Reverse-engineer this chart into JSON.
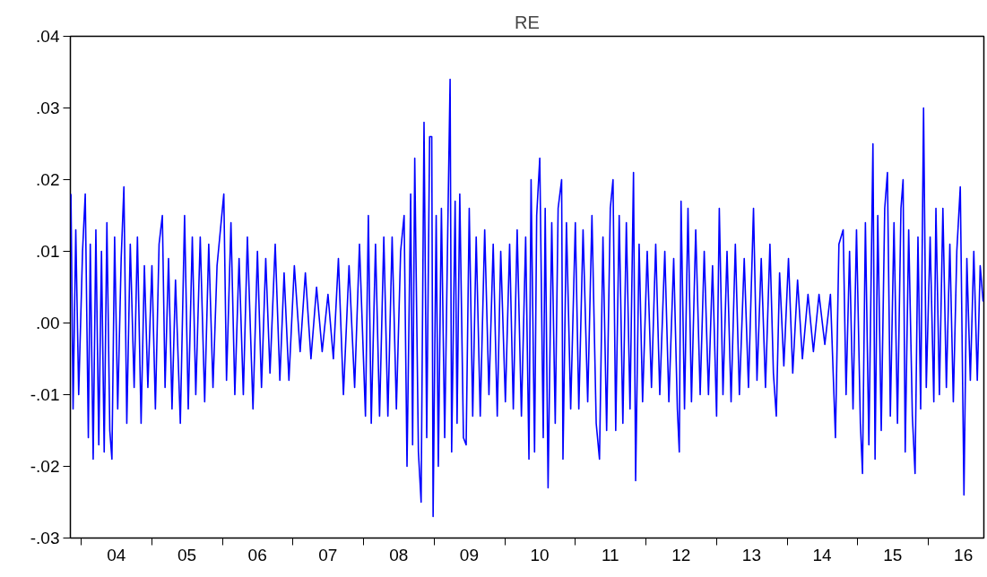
{
  "chart_data": {
    "type": "line",
    "title": "RE",
    "xlim": [
      "2003-11-06",
      "2016-10-15"
    ],
    "ylim": [
      -0.03,
      0.04
    ],
    "xticks": [
      {
        "value": "2004-01-01",
        "label": null
      },
      {
        "value": "2004-07-01",
        "label": "04"
      },
      {
        "value": "2005-01-01",
        "label": null
      },
      {
        "value": "2005-07-01",
        "label": "05"
      },
      {
        "value": "2006-01-01",
        "label": null
      },
      {
        "value": "2006-07-01",
        "label": "06"
      },
      {
        "value": "2007-01-01",
        "label": null
      },
      {
        "value": "2007-07-01",
        "label": "07"
      },
      {
        "value": "2008-01-01",
        "label": null
      },
      {
        "value": "2008-07-01",
        "label": "08"
      },
      {
        "value": "2009-01-01",
        "label": null
      },
      {
        "value": "2009-07-01",
        "label": "09"
      },
      {
        "value": "2010-01-01",
        "label": null
      },
      {
        "value": "2010-07-01",
        "label": "10"
      },
      {
        "value": "2011-01-01",
        "label": null
      },
      {
        "value": "2011-07-01",
        "label": "11"
      },
      {
        "value": "2012-01-01",
        "label": null
      },
      {
        "value": "2012-07-01",
        "label": "12"
      },
      {
        "value": "2013-01-01",
        "label": null
      },
      {
        "value": "2013-07-01",
        "label": "13"
      },
      {
        "value": "2014-01-01",
        "label": null
      },
      {
        "value": "2014-07-01",
        "label": "14"
      },
      {
        "value": "2015-01-01",
        "label": null
      },
      {
        "value": "2015-07-01",
        "label": "15"
      },
      {
        "value": "2016-01-01",
        "label": null
      },
      {
        "value": "2016-07-01",
        "label": "16"
      }
    ],
    "yticks": [
      {
        "value": -0.03,
        "label": "-.03"
      },
      {
        "value": -0.02,
        "label": "-.02"
      },
      {
        "value": -0.01,
        "label": "-.01"
      },
      {
        "value": 0,
        "label": ".00"
      },
      {
        "value": 0.01,
        "label": ".01"
      },
      {
        "value": 0.02,
        "label": ".02"
      },
      {
        "value": 0.03,
        "label": ".03"
      },
      {
        "value": 0.04,
        "label": ".04"
      }
    ],
    "line_style": "solid",
    "series": [
      {
        "color": "#0000ff",
        "x": [
          "2003-11-09",
          "2003-11-20",
          "2003-12-04",
          "2003-12-19",
          "2004-01-08",
          "2004-01-22",
          "2004-02-07",
          "2004-02-17",
          "2004-03-03",
          "2004-03-17",
          "2004-04-01",
          "2004-04-15",
          "2004-04-29",
          "2004-05-13",
          "2004-05-28",
          "2004-06-08",
          "2004-06-22",
          "2004-07-08",
          "2004-07-26",
          "2004-08-09",
          "2004-08-24",
          "2004-09-11",
          "2004-10-01",
          "2004-10-18",
          "2004-11-06",
          "2004-11-23",
          "2004-12-11",
          "2005-01-01",
          "2005-01-19",
          "2005-02-07",
          "2005-02-24",
          "2005-03-10",
          "2005-03-28",
          "2005-04-15",
          "2005-05-03",
          "2005-05-28",
          "2005-06-19",
          "2005-07-08",
          "2005-07-29",
          "2005-08-16",
          "2005-09-08",
          "2005-10-01",
          "2005-10-22",
          "2005-11-13",
          "2005-12-04",
          "2006-01-08",
          "2006-01-22",
          "2006-02-14",
          "2006-03-06",
          "2006-03-28",
          "2006-04-19",
          "2006-05-10",
          "2006-06-08",
          "2006-07-01",
          "2006-07-22",
          "2006-08-13",
          "2006-09-04",
          "2006-10-01",
          "2006-10-25",
          "2006-11-16",
          "2006-12-11",
          "2007-01-08",
          "2007-02-07",
          "2007-03-06",
          "2007-04-04",
          "2007-05-03",
          "2007-06-01",
          "2007-07-01",
          "2007-07-29",
          "2007-08-24",
          "2007-09-19",
          "2007-10-18",
          "2007-11-16",
          "2007-12-11",
          "2008-01-11",
          "2008-01-26",
          "2008-02-10",
          "2008-03-03",
          "2008-03-24",
          "2008-04-15",
          "2008-05-06",
          "2008-05-28",
          "2008-06-19",
          "2008-07-11",
          "2008-07-29",
          "2008-08-13",
          "2008-09-01",
          "2008-09-11",
          "2008-09-22",
          "2008-10-11",
          "2008-10-25",
          "2008-11-09",
          "2008-11-23",
          "2008-12-08",
          "2008-12-19",
          "2008-12-26",
          "2009-01-11",
          "2009-01-22",
          "2009-02-07",
          "2009-02-24",
          "2009-03-13",
          "2009-03-24",
          "2009-04-01",
          "2009-04-19",
          "2009-04-29",
          "2009-05-13",
          "2009-06-01",
          "2009-06-15",
          "2009-07-01",
          "2009-07-19",
          "2009-08-06",
          "2009-08-27",
          "2009-09-19",
          "2009-10-11",
          "2009-11-02",
          "2009-11-23",
          "2009-12-11",
          "2010-01-04",
          "2010-01-26",
          "2010-02-14",
          "2010-03-06",
          "2010-03-28",
          "2010-04-19",
          "2010-05-06",
          "2010-05-17",
          "2010-06-04",
          "2010-06-15",
          "2010-07-01",
          "2010-07-19",
          "2010-07-29",
          "2010-08-13",
          "2010-09-01",
          "2010-09-19",
          "2010-10-04",
          "2010-10-22",
          "2010-10-29",
          "2010-11-16",
          "2010-12-08",
          "2011-01-01",
          "2011-01-19",
          "2011-02-10",
          "2011-03-06",
          "2011-03-28",
          "2011-04-19",
          "2011-05-06",
          "2011-05-24",
          "2011-06-12",
          "2011-07-01",
          "2011-07-15",
          "2011-07-29",
          "2011-08-16",
          "2011-09-04",
          "2011-09-22",
          "2011-10-11",
          "2011-10-29",
          "2011-11-09",
          "2011-11-27",
          "2011-12-15",
          "2012-01-08",
          "2012-01-30",
          "2012-02-21",
          "2012-03-13",
          "2012-04-08",
          "2012-04-29",
          "2012-05-24",
          "2012-06-12",
          "2012-06-22",
          "2012-07-01",
          "2012-07-19",
          "2012-08-06",
          "2012-08-24",
          "2012-09-15",
          "2012-10-08",
          "2012-10-29",
          "2012-11-20",
          "2012-12-11",
          "2013-01-01",
          "2013-01-15",
          "2013-02-03",
          "2013-02-24",
          "2013-03-17",
          "2013-04-08",
          "2013-04-29",
          "2013-05-24",
          "2013-06-15",
          "2013-07-11",
          "2013-07-29",
          "2013-08-20",
          "2013-09-11",
          "2013-10-04",
          "2013-10-22",
          "2013-11-06",
          "2013-11-23",
          "2013-12-15",
          "2014-01-08",
          "2014-01-30",
          "2014-02-24",
          "2014-03-21",
          "2014-04-19",
          "2014-05-17",
          "2014-06-15",
          "2014-07-15",
          "2014-08-13",
          "2014-09-08",
          "2014-09-26",
          "2014-10-18",
          "2014-11-02",
          "2014-11-20",
          "2014-12-08",
          "2014-12-26",
          "2015-01-15",
          "2015-01-26",
          "2015-02-10",
          "2015-02-28",
          "2015-03-21",
          "2015-04-01",
          "2015-04-15",
          "2015-05-03",
          "2015-05-21",
          "2015-06-04",
          "2015-06-19",
          "2015-07-08",
          "2015-07-26",
          "2015-08-13",
          "2015-08-24",
          "2015-09-04",
          "2015-09-22",
          "2015-10-11",
          "2015-10-25",
          "2015-11-09",
          "2015-11-23",
          "2015-12-08",
          "2015-12-22",
          "2016-01-11",
          "2016-01-30",
          "2016-02-10",
          "2016-02-28",
          "2016-03-17",
          "2016-04-04",
          "2016-04-22",
          "2016-05-10",
          "2016-05-28",
          "2016-06-15",
          "2016-07-04",
          "2016-07-19",
          "2016-08-06",
          "2016-08-24",
          "2016-09-11",
          "2016-09-26",
          "2016-10-11"
        ],
        "values": [
          0.018,
          -0.012,
          0.013,
          -0.01,
          0.01,
          0.018,
          -0.016,
          0.011,
          -0.019,
          0.013,
          -0.017,
          0.01,
          -0.018,
          0.014,
          -0.015,
          -0.019,
          0.012,
          -0.012,
          0.009,
          0.019,
          -0.014,
          0.011,
          -0.009,
          0.012,
          -0.014,
          0.008,
          -0.009,
          0.008,
          -0.012,
          0.011,
          0.015,
          -0.009,
          0.009,
          -0.012,
          0.006,
          -0.014,
          0.015,
          -0.012,
          0.012,
          -0.01,
          0.012,
          -0.011,
          0.011,
          -0.009,
          0.008,
          0.018,
          -0.008,
          0.014,
          -0.01,
          0.009,
          -0.01,
          0.012,
          -0.012,
          0.01,
          -0.009,
          0.009,
          -0.007,
          0.011,
          -0.008,
          0.007,
          -0.008,
          0.008,
          -0.004,
          0.007,
          -0.005,
          0.005,
          -0.004,
          0.004,
          -0.005,
          0.009,
          -0.01,
          0.008,
          -0.009,
          0.011,
          -0.013,
          0.015,
          -0.014,
          0.011,
          -0.013,
          0.012,
          -0.013,
          0.012,
          -0.012,
          0.01,
          0.015,
          -0.02,
          0.018,
          -0.017,
          0.023,
          -0.018,
          -0.025,
          0.028,
          -0.016,
          0.026,
          0.026,
          -0.027,
          0.015,
          -0.02,
          0.016,
          -0.016,
          0.015,
          0.034,
          -0.018,
          0.017,
          -0.014,
          0.018,
          -0.016,
          -0.017,
          0.016,
          -0.013,
          0.012,
          -0.013,
          0.013,
          -0.01,
          0.011,
          -0.013,
          0.01,
          -0.011,
          0.011,
          -0.012,
          0.013,
          -0.013,
          0.012,
          -0.019,
          0.02,
          -0.018,
          0.015,
          0.023,
          -0.016,
          0.016,
          -0.023,
          0.014,
          -0.014,
          0.016,
          0.02,
          -0.019,
          0.014,
          -0.012,
          0.014,
          -0.012,
          0.013,
          -0.011,
          0.015,
          -0.014,
          -0.019,
          0.012,
          -0.015,
          0.016,
          0.02,
          -0.015,
          0.015,
          -0.014,
          0.014,
          -0.012,
          0.021,
          -0.022,
          0.011,
          -0.011,
          0.01,
          -0.009,
          0.011,
          -0.01,
          0.01,
          -0.011,
          0.009,
          -0.012,
          -0.018,
          0.017,
          -0.012,
          0.016,
          -0.011,
          0.013,
          -0.01,
          0.01,
          -0.01,
          0.008,
          -0.013,
          0.016,
          -0.01,
          0.01,
          -0.011,
          0.011,
          -0.01,
          0.009,
          -0.009,
          0.016,
          -0.008,
          0.009,
          -0.009,
          0.011,
          -0.007,
          -0.013,
          0.007,
          -0.006,
          0.009,
          -0.007,
          0.006,
          -0.005,
          0.004,
          -0.004,
          0.004,
          -0.003,
          0.004,
          -0.016,
          0.011,
          0.013,
          -0.01,
          0.01,
          -0.012,
          0.013,
          -0.014,
          -0.021,
          0.014,
          -0.017,
          0.025,
          -0.019,
          0.015,
          -0.015,
          0.016,
          0.021,
          -0.013,
          0.014,
          -0.014,
          0.016,
          0.02,
          -0.018,
          0.013,
          -0.013,
          -0.021,
          0.012,
          -0.012,
          0.03,
          -0.009,
          0.012,
          -0.011,
          0.016,
          -0.01,
          0.016,
          -0.009,
          0.011,
          -0.011,
          0.01,
          0.019,
          -0.024,
          0.009,
          -0.008,
          0.01,
          -0.008,
          0.008,
          0.003
        ]
      }
    ]
  }
}
